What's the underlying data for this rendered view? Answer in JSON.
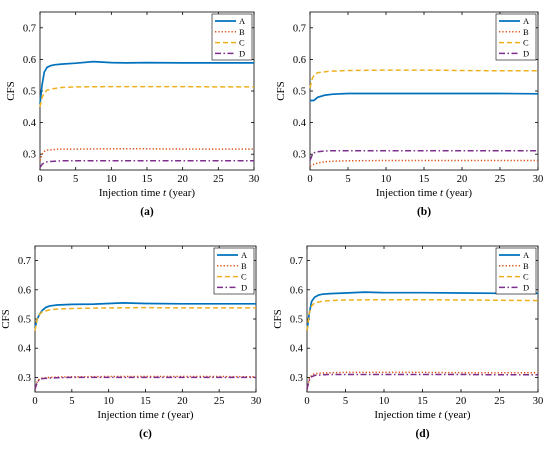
{
  "chart_data": [
    {
      "panel": "(a)",
      "type": "line",
      "xlabel_pre": "Injection time ",
      "xlabel_var": "t",
      "xlabel_post": " (year)",
      "ylabel": "CFS",
      "xlim": [
        0,
        30
      ],
      "ylim": [
        0.25,
        0.75
      ],
      "xticks": [
        "0",
        "5",
        "10",
        "15",
        "20",
        "25",
        "30"
      ],
      "yticks": [
        "0.3",
        "0.4",
        "0.5",
        "0.6",
        "0.7"
      ],
      "legend": "top-right",
      "series": [
        {
          "name": "A",
          "color": "#0072BD",
          "style": "solid",
          "x": [
            0,
            0.3,
            0.6,
            1,
            1.5,
            2,
            3,
            5,
            7.5,
            10,
            12,
            15,
            20,
            25,
            30
          ],
          "y": [
            0.46,
            0.52,
            0.56,
            0.575,
            0.58,
            0.583,
            0.585,
            0.588,
            0.593,
            0.59,
            0.589,
            0.59,
            0.589,
            0.589,
            0.589
          ]
        },
        {
          "name": "B",
          "color": "#D95319",
          "style": "dotted",
          "x": [
            0,
            0.3,
            0.6,
            1,
            2,
            3,
            5,
            10,
            15,
            20,
            25,
            30
          ],
          "y": [
            0.28,
            0.3,
            0.309,
            0.313,
            0.315,
            0.316,
            0.316,
            0.317,
            0.317,
            0.316,
            0.316,
            0.316
          ]
        },
        {
          "name": "C",
          "color": "#EDB120",
          "style": "dashed",
          "x": [
            0,
            0.3,
            0.6,
            1,
            2,
            3,
            5,
            10,
            15,
            20,
            25,
            30
          ],
          "y": [
            0.45,
            0.48,
            0.495,
            0.503,
            0.508,
            0.511,
            0.513,
            0.514,
            0.514,
            0.514,
            0.513,
            0.513
          ]
        },
        {
          "name": "D",
          "color": "#7E2F8E",
          "style": "dashdot",
          "x": [
            0,
            0.3,
            0.6,
            1,
            2,
            3,
            5,
            10,
            15,
            20,
            25,
            30
          ],
          "y": [
            0.258,
            0.268,
            0.273,
            0.276,
            0.278,
            0.279,
            0.279,
            0.279,
            0.279,
            0.279,
            0.279,
            0.279
          ]
        }
      ]
    },
    {
      "panel": "(b)",
      "type": "line",
      "xlabel_pre": "Injection time ",
      "xlabel_var": "t",
      "xlabel_post": " (year)",
      "ylabel": "CFS",
      "xlim": [
        0,
        30
      ],
      "ylim": [
        0.25,
        0.75
      ],
      "xticks": [
        "0",
        "5",
        "10",
        "15",
        "20",
        "25",
        "30"
      ],
      "yticks": [
        "0.3",
        "0.4",
        "0.5",
        "0.6",
        "0.7"
      ],
      "legend": "top-right",
      "series": [
        {
          "name": "A",
          "color": "#0072BD",
          "style": "solid",
          "x": [
            0,
            0.5,
            1,
            2,
            3,
            5,
            10,
            15,
            20,
            25,
            30
          ],
          "y": [
            0.47,
            0.47,
            0.48,
            0.487,
            0.49,
            0.492,
            0.492,
            0.492,
            0.492,
            0.492,
            0.491
          ]
        },
        {
          "name": "B",
          "color": "#D95319",
          "style": "dotted",
          "x": [
            0,
            0.5,
            1,
            2,
            3,
            5,
            10,
            15,
            20,
            25,
            30
          ],
          "y": [
            0.262,
            0.268,
            0.272,
            0.276,
            0.278,
            0.279,
            0.28,
            0.28,
            0.28,
            0.28,
            0.28
          ]
        },
        {
          "name": "C",
          "color": "#EDB120",
          "style": "dashed",
          "x": [
            0,
            0.3,
            0.6,
            1,
            2,
            3,
            5,
            10,
            15,
            20,
            25,
            30
          ],
          "y": [
            0.51,
            0.54,
            0.553,
            0.558,
            0.561,
            0.563,
            0.565,
            0.566,
            0.566,
            0.565,
            0.564,
            0.564
          ]
        },
        {
          "name": "D",
          "color": "#7E2F8E",
          "style": "dashdot",
          "x": [
            0,
            0.3,
            0.6,
            1,
            2,
            3,
            5,
            10,
            15,
            20,
            25,
            30
          ],
          "y": [
            0.28,
            0.298,
            0.305,
            0.308,
            0.31,
            0.311,
            0.311,
            0.311,
            0.311,
            0.311,
            0.311,
            0.311
          ]
        }
      ]
    },
    {
      "panel": "(c)",
      "type": "line",
      "xlabel_pre": "Injection time ",
      "xlabel_var": "t",
      "xlabel_post": " (year)",
      "ylabel": "CFS",
      "xlim": [
        0,
        30
      ],
      "ylim": [
        0.25,
        0.75
      ],
      "xticks": [
        "0",
        "5",
        "10",
        "15",
        "20",
        "25",
        "30"
      ],
      "yticks": [
        "0.3",
        "0.4",
        "0.5",
        "0.6",
        "0.7"
      ],
      "legend": "top-right",
      "series": [
        {
          "name": "A",
          "color": "#0072BD",
          "style": "solid",
          "x": [
            0,
            0.3,
            0.6,
            1,
            1.5,
            2,
            3,
            5,
            8,
            10,
            12,
            15,
            20,
            25,
            30
          ],
          "y": [
            0.47,
            0.5,
            0.515,
            0.53,
            0.54,
            0.545,
            0.548,
            0.55,
            0.551,
            0.553,
            0.555,
            0.553,
            0.552,
            0.552,
            0.552
          ]
        },
        {
          "name": "B",
          "color": "#D95319",
          "style": "dotted",
          "x": [
            0,
            0.3,
            0.6,
            1,
            2,
            3,
            5,
            10,
            15,
            20,
            25,
            30
          ],
          "y": [
            0.26,
            0.285,
            0.295,
            0.298,
            0.3,
            0.301,
            0.302,
            0.303,
            0.303,
            0.303,
            0.303,
            0.302
          ]
        },
        {
          "name": "C",
          "color": "#EDB120",
          "style": "dashed",
          "x": [
            0,
            0.3,
            0.6,
            1,
            2,
            3,
            5,
            10,
            15,
            20,
            25,
            30
          ],
          "y": [
            0.46,
            0.5,
            0.515,
            0.525,
            0.531,
            0.534,
            0.536,
            0.538,
            0.539,
            0.538,
            0.538,
            0.538
          ]
        },
        {
          "name": "D",
          "color": "#7E2F8E",
          "style": "dashdot",
          "x": [
            0,
            0.3,
            0.6,
            1,
            2,
            3,
            5,
            10,
            15,
            20,
            25,
            30
          ],
          "y": [
            0.26,
            0.283,
            0.292,
            0.296,
            0.298,
            0.299,
            0.3,
            0.3,
            0.3,
            0.3,
            0.3,
            0.3
          ]
        }
      ]
    },
    {
      "panel": "(d)",
      "type": "line",
      "xlabel_pre": "Injection time ",
      "xlabel_var": "t",
      "xlabel_post": " (year)",
      "ylabel": "CFS",
      "xlim": [
        0,
        30
      ],
      "ylim": [
        0.25,
        0.75
      ],
      "xticks": [
        "0",
        "5",
        "10",
        "15",
        "20",
        "25",
        "30"
      ],
      "yticks": [
        "0.3",
        "0.4",
        "0.5",
        "0.6",
        "0.7"
      ],
      "legend": "top-right",
      "series": [
        {
          "name": "A",
          "color": "#0072BD",
          "style": "solid",
          "x": [
            0,
            0.3,
            0.6,
            1,
            1.5,
            2,
            3,
            5,
            7.5,
            10,
            12,
            15,
            20,
            25,
            30
          ],
          "y": [
            0.46,
            0.52,
            0.56,
            0.575,
            0.582,
            0.585,
            0.587,
            0.589,
            0.592,
            0.59,
            0.59,
            0.59,
            0.589,
            0.588,
            0.588
          ]
        },
        {
          "name": "B",
          "color": "#D95319",
          "style": "dotted",
          "x": [
            0,
            0.3,
            0.6,
            1,
            2,
            3,
            5,
            10,
            15,
            20,
            25,
            30
          ],
          "y": [
            0.26,
            0.295,
            0.308,
            0.313,
            0.315,
            0.316,
            0.317,
            0.317,
            0.317,
            0.316,
            0.316,
            0.316
          ]
        },
        {
          "name": "C",
          "color": "#EDB120",
          "style": "dashed",
          "x": [
            0,
            0.3,
            0.6,
            1,
            2,
            3,
            5,
            10,
            15,
            20,
            25,
            30
          ],
          "y": [
            0.46,
            0.52,
            0.545,
            0.555,
            0.561,
            0.563,
            0.565,
            0.566,
            0.566,
            0.565,
            0.564,
            0.563
          ]
        },
        {
          "name": "D",
          "color": "#7E2F8E",
          "style": "dashdot",
          "x": [
            0,
            0.3,
            0.6,
            1,
            2,
            3,
            5,
            10,
            15,
            20,
            25,
            30
          ],
          "y": [
            0.26,
            0.29,
            0.302,
            0.307,
            0.309,
            0.31,
            0.31,
            0.31,
            0.31,
            0.31,
            0.309,
            0.309
          ]
        }
      ]
    }
  ]
}
